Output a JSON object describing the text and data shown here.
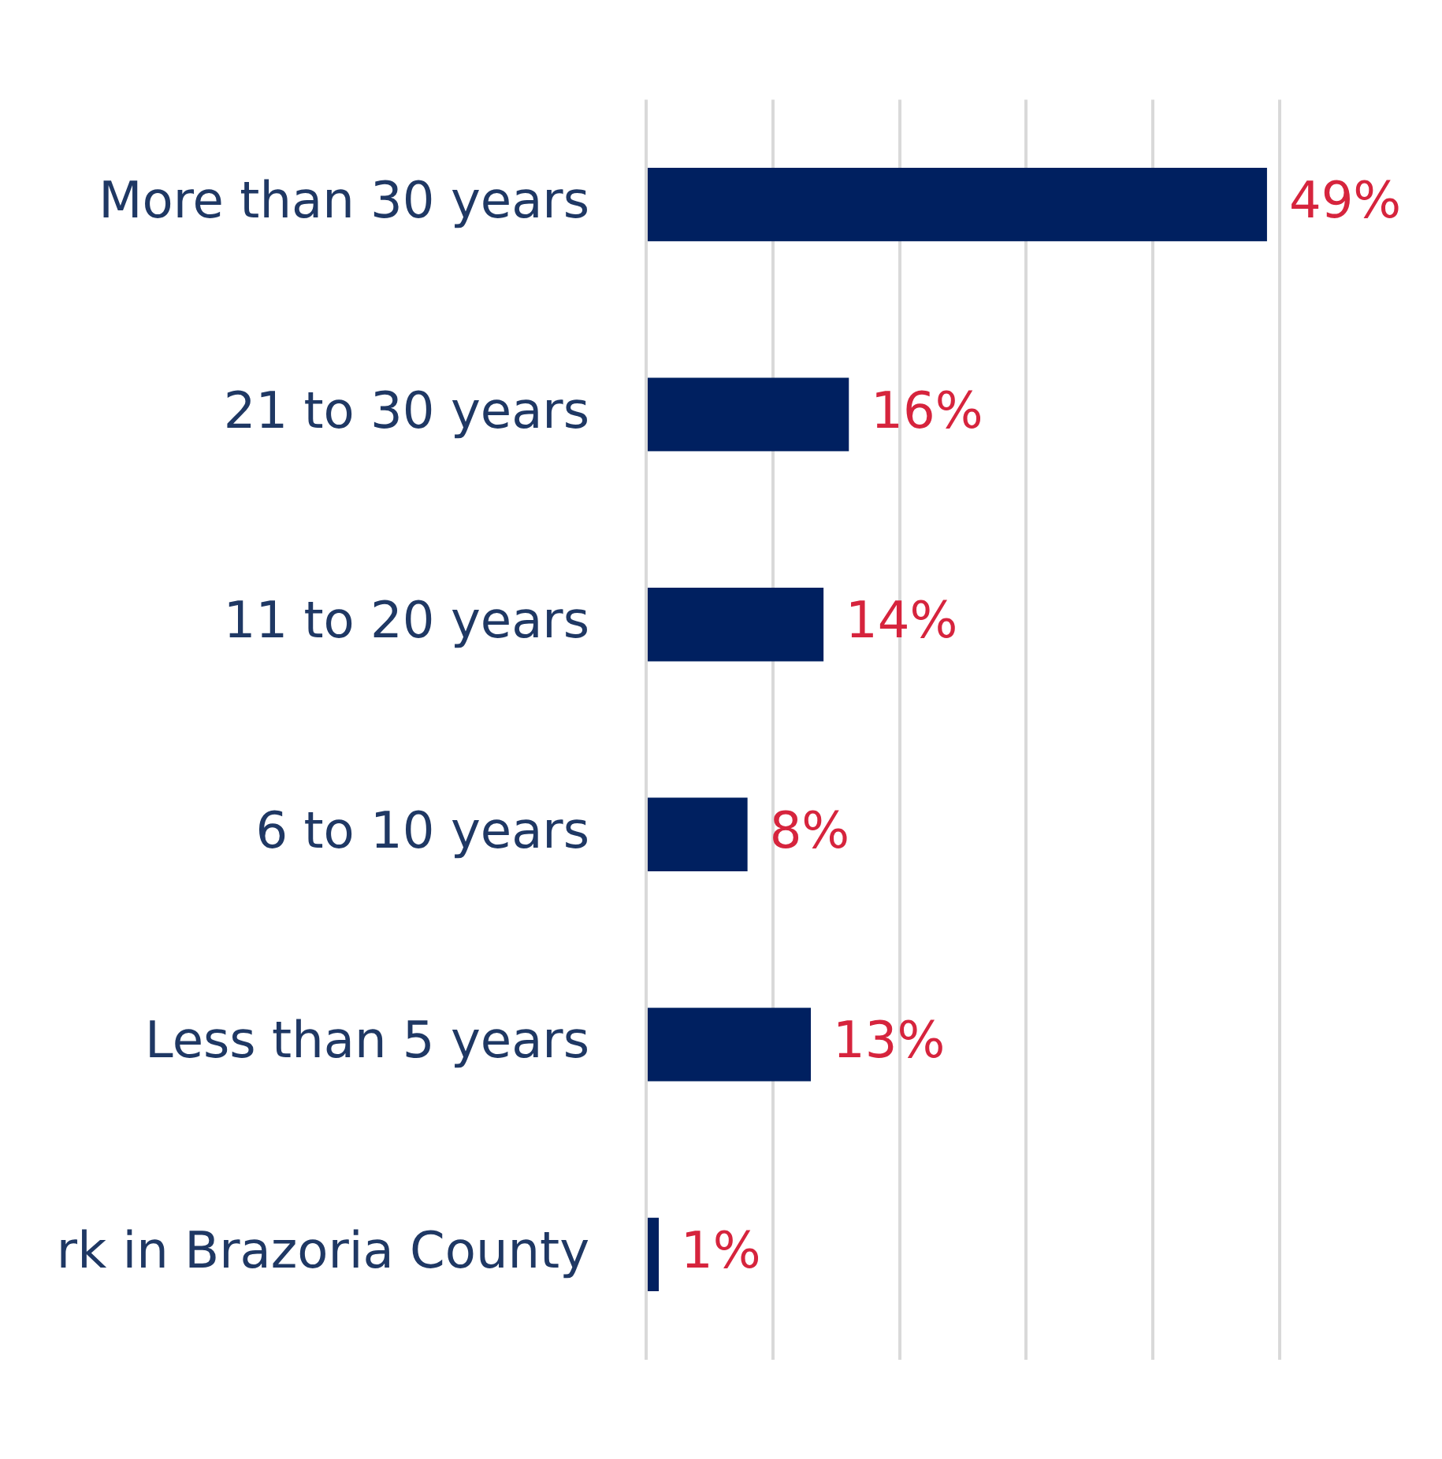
{
  "chart_data": {
    "type": "bar",
    "orientation": "horizontal",
    "categories": [
      "More than 30 years",
      "21 to 30 years",
      "11 to 20 years",
      "6 to 10 years",
      "Less than 5 years",
      "rk in Brazoria County"
    ],
    "values": [
      49,
      16,
      14,
      8,
      13,
      1
    ],
    "value_labels": [
      "49%",
      "16%",
      "14%",
      "8%",
      "13%",
      "1%"
    ],
    "color": "#002060",
    "xlim": [
      0,
      50
    ],
    "xticks": [
      {
        "value": 0,
        "label": null
      },
      {
        "value": 10,
        "label": null
      },
      {
        "value": 20,
        "label": null
      },
      {
        "value": 30,
        "label": null
      },
      {
        "value": 40,
        "label": null
      },
      {
        "value": 50,
        "label": null
      }
    ],
    "grid": "x",
    "tick_labels": "y",
    "legend": false
  }
}
